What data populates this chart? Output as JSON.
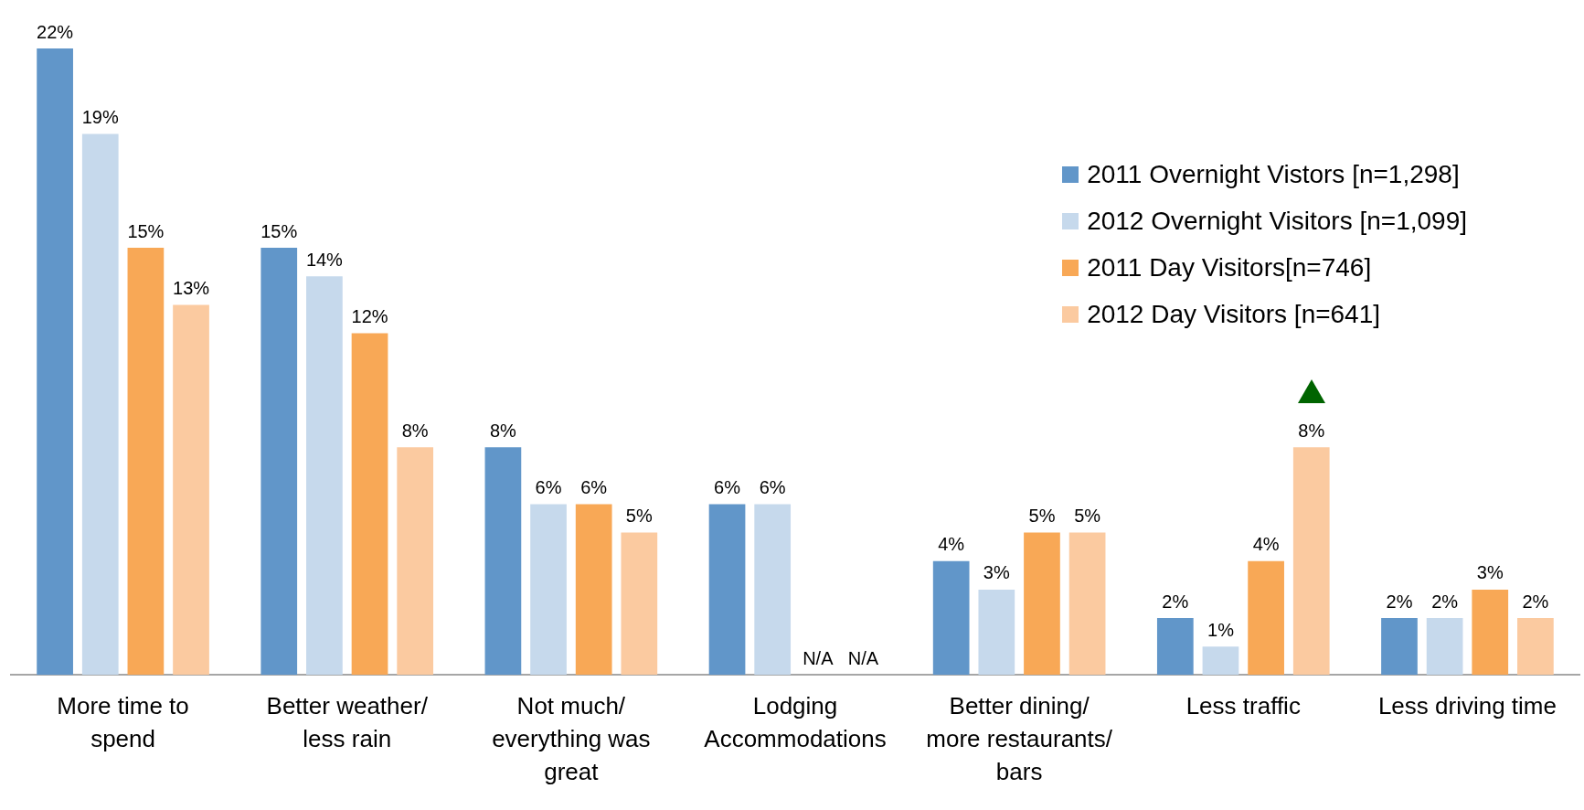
{
  "chart_data": {
    "type": "bar",
    "categories": [
      "More time to spend",
      "Better weather/ less rain",
      "Not much/ everything was great",
      "Lodging Accommodations",
      "Better dining/ more restaurants/ bars",
      "Less traffic",
      "Less driving time"
    ],
    "series": [
      {
        "name": "2011 Overnight Vistors [n=1,298]",
        "color": "#6196c9",
        "values": [
          22,
          15,
          8,
          6,
          4,
          2,
          2
        ],
        "value_labels": [
          "22%",
          "15%",
          "8%",
          "6%",
          "4%",
          "2%",
          "2%"
        ]
      },
      {
        "name": "2012 Overnight Visitors [n=1,099]",
        "color": "#c6d9ec",
        "values": [
          19,
          14,
          6,
          6,
          3,
          1,
          2
        ],
        "value_labels": [
          "19%",
          "14%",
          "6%",
          "6%",
          "3%",
          "1%",
          "2%"
        ]
      },
      {
        "name": "2011 Day Visitors[n=746]",
        "color": "#f8a856",
        "values": [
          15,
          12,
          6,
          null,
          5,
          4,
          3
        ],
        "value_labels": [
          "15%",
          "12%",
          "6%",
          "N/A",
          "5%",
          "4%",
          "3%"
        ]
      },
      {
        "name": "2012 Day Visitors [n=641]",
        "color": "#fbcaa0",
        "values": [
          13,
          8,
          5,
          null,
          5,
          8,
          2
        ],
        "value_labels": [
          "13%",
          "8%",
          "5%",
          "N/A",
          "5%",
          "8%",
          "2%"
        ]
      }
    ],
    "ylim": [
      0,
      22
    ],
    "grid": false,
    "legend": "top right",
    "tick_labels": "x"
  }
}
